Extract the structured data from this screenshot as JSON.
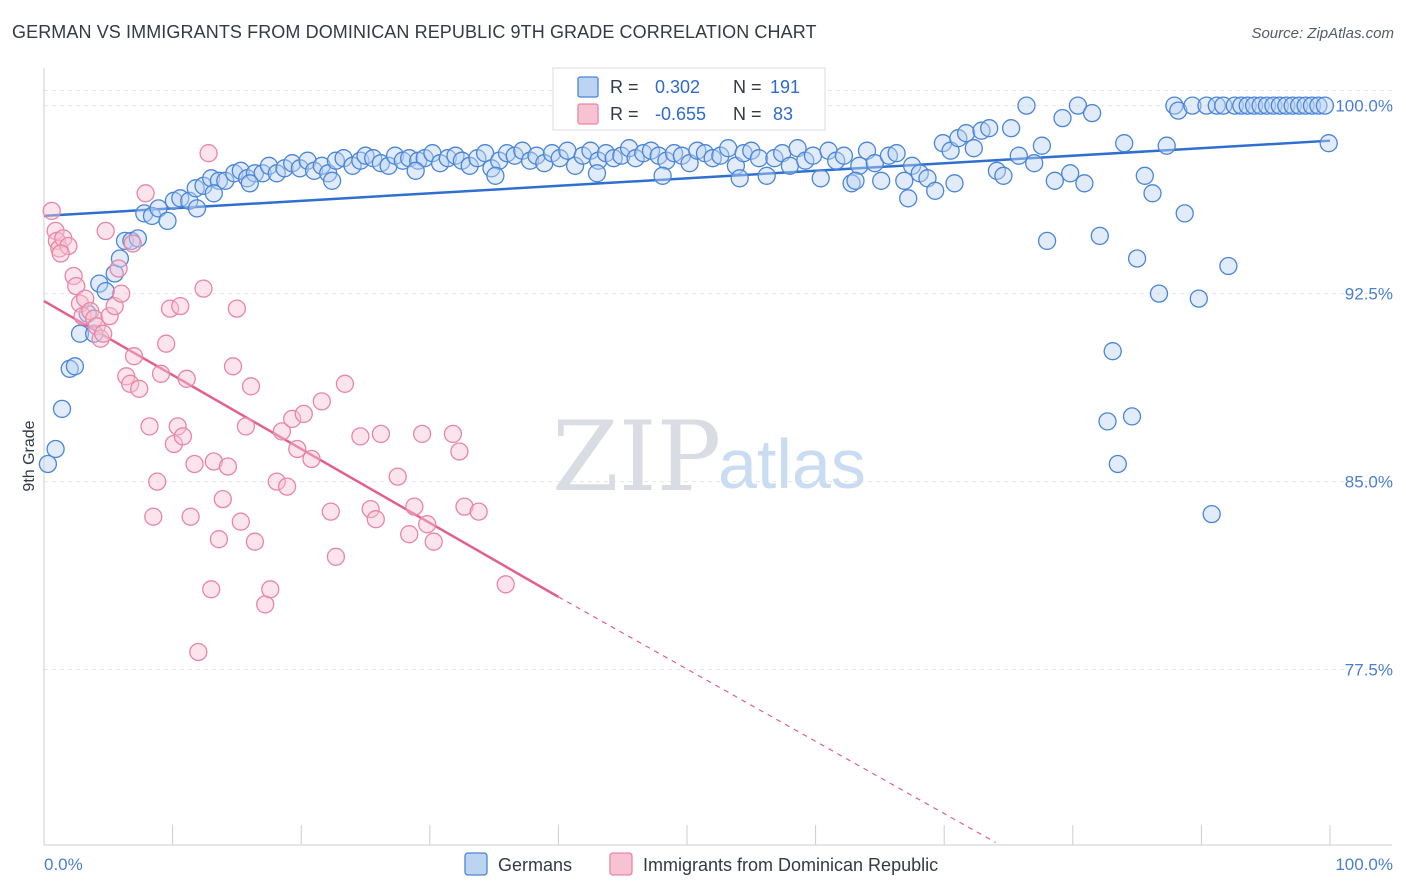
{
  "title": "GERMAN VS IMMIGRANTS FROM DOMINICAN REPUBLIC 9TH GRADE CORRELATION CHART",
  "source": "Source: ZipAtlas.com",
  "watermark": {
    "zip": "ZIP",
    "atlas": "atlas"
  },
  "colors": {
    "blue": "#4a86d8",
    "blue_fill": "#bcd3f2",
    "blue_line": "#2f6fd0",
    "pink": "#e986a6",
    "pink_fill": "#f7c3d3",
    "pink_line": "#e2608d",
    "grid": "#e4e6ea",
    "tick_label": "#4a7fcf"
  },
  "stats": [
    {
      "r_label": "R =",
      "r_value": "0.302",
      "n_label": "N =",
      "n_value": "191",
      "color": "#4a86d8"
    },
    {
      "r_label": "R =",
      "r_value": "-0.655",
      "n_label": "N =",
      "n_value": "83",
      "color": "#e986a6"
    }
  ],
  "chart_data": {
    "type": "scatter",
    "title": "GERMAN VS IMMIGRANTS FROM DOMINICAN REPUBLIC 9TH GRADE CORRELATION CHART",
    "xlabel": "",
    "ylabel": "9th Grade",
    "xlim": [
      0,
      100
    ],
    "ylim": [
      70.5,
      101.5
    ],
    "x_tick_labels": [
      "0.0%",
      "100.0%"
    ],
    "y_ticks": [
      100.0,
      92.5,
      85.0,
      77.5
    ],
    "y_tick_labels": [
      "100.0%",
      "92.5%",
      "85.0%",
      "77.5%"
    ],
    "grid": true,
    "legend_position": "bottom-center",
    "series": [
      {
        "name": "Germans",
        "color": "#4a86d8",
        "trend": {
          "x": [
            0,
            100
          ],
          "y": [
            95.6,
            98.6
          ],
          "solid_to": 100
        },
        "points": [
          [
            0.3,
            85.7
          ],
          [
            0.9,
            86.3
          ],
          [
            1.4,
            87.9
          ],
          [
            2.0,
            89.5
          ],
          [
            2.4,
            89.6
          ],
          [
            2.8,
            90.9
          ],
          [
            3.4,
            91.7
          ],
          [
            3.9,
            90.9
          ],
          [
            4.3,
            92.9
          ],
          [
            4.8,
            92.6
          ],
          [
            5.5,
            93.3
          ],
          [
            5.9,
            93.9
          ],
          [
            6.3,
            94.6
          ],
          [
            6.8,
            94.6
          ],
          [
            7.3,
            94.7
          ],
          [
            7.8,
            95.7
          ],
          [
            8.4,
            95.6
          ],
          [
            8.9,
            95.9
          ],
          [
            9.6,
            95.4
          ],
          [
            10.1,
            96.2
          ],
          [
            10.6,
            96.3
          ],
          [
            11.3,
            96.2
          ],
          [
            11.8,
            96.7
          ],
          [
            12.4,
            96.8
          ],
          [
            13.0,
            97.1
          ],
          [
            13.6,
            97.0
          ],
          [
            14.1,
            97.0
          ],
          [
            14.8,
            97.3
          ],
          [
            15.3,
            97.4
          ],
          [
            15.8,
            97.1
          ],
          [
            16.4,
            97.3
          ],
          [
            17.0,
            97.3
          ],
          [
            17.5,
            97.6
          ],
          [
            18.1,
            97.3
          ],
          [
            18.7,
            97.5
          ],
          [
            19.3,
            97.7
          ],
          [
            19.9,
            97.5
          ],
          [
            20.5,
            97.8
          ],
          [
            21.0,
            97.4
          ],
          [
            21.6,
            97.6
          ],
          [
            22.1,
            97.3
          ],
          [
            22.7,
            97.8
          ],
          [
            23.3,
            97.9
          ],
          [
            24.0,
            97.6
          ],
          [
            24.6,
            97.8
          ],
          [
            25.0,
            98.0
          ],
          [
            25.6,
            97.9
          ],
          [
            26.2,
            97.7
          ],
          [
            26.8,
            97.6
          ],
          [
            27.3,
            98.0
          ],
          [
            27.9,
            97.8
          ],
          [
            28.4,
            97.9
          ],
          [
            29.1,
            97.8
          ],
          [
            29.6,
            97.9
          ],
          [
            30.2,
            98.1
          ],
          [
            30.8,
            97.7
          ],
          [
            31.4,
            97.9
          ],
          [
            32.0,
            98.0
          ],
          [
            32.5,
            97.8
          ],
          [
            33.1,
            97.6
          ],
          [
            33.7,
            97.9
          ],
          [
            34.3,
            98.1
          ],
          [
            34.8,
            97.5
          ],
          [
            35.4,
            97.8
          ],
          [
            36.0,
            98.1
          ],
          [
            36.6,
            98.0
          ],
          [
            37.2,
            98.2
          ],
          [
            37.8,
            97.8
          ],
          [
            38.3,
            98.0
          ],
          [
            38.9,
            97.7
          ],
          [
            39.5,
            98.1
          ],
          [
            40.1,
            97.9
          ],
          [
            40.7,
            98.2
          ],
          [
            41.3,
            97.6
          ],
          [
            41.9,
            98.0
          ],
          [
            42.5,
            98.2
          ],
          [
            43.1,
            97.8
          ],
          [
            43.7,
            98.1
          ],
          [
            44.3,
            97.9
          ],
          [
            44.9,
            98.0
          ],
          [
            45.5,
            98.3
          ],
          [
            46.0,
            97.9
          ],
          [
            46.6,
            98.1
          ],
          [
            47.2,
            98.2
          ],
          [
            47.8,
            98.0
          ],
          [
            48.4,
            97.8
          ],
          [
            49.0,
            98.1
          ],
          [
            49.6,
            98.0
          ],
          [
            50.2,
            97.7
          ],
          [
            50.8,
            98.2
          ],
          [
            51.4,
            98.1
          ],
          [
            52.0,
            97.9
          ],
          [
            52.6,
            98.0
          ],
          [
            53.2,
            98.3
          ],
          [
            53.8,
            97.6
          ],
          [
            54.4,
            98.1
          ],
          [
            55.0,
            98.2
          ],
          [
            55.6,
            97.9
          ],
          [
            56.2,
            97.2
          ],
          [
            56.8,
            97.9
          ],
          [
            57.4,
            98.1
          ],
          [
            58.0,
            97.6
          ],
          [
            58.6,
            98.3
          ],
          [
            59.2,
            97.8
          ],
          [
            59.8,
            98.0
          ],
          [
            60.4,
            97.1
          ],
          [
            61.0,
            98.2
          ],
          [
            61.6,
            97.8
          ],
          [
            62.2,
            98.0
          ],
          [
            62.8,
            96.9
          ],
          [
            63.4,
            97.6
          ],
          [
            64.0,
            98.2
          ],
          [
            64.6,
            97.7
          ],
          [
            65.1,
            97.0
          ],
          [
            65.7,
            98.0
          ],
          [
            66.3,
            98.1
          ],
          [
            66.9,
            97.0
          ],
          [
            67.5,
            97.6
          ],
          [
            68.1,
            97.3
          ],
          [
            68.7,
            97.1
          ],
          [
            69.3,
            96.6
          ],
          [
            69.9,
            98.5
          ],
          [
            70.5,
            98.2
          ],
          [
            71.1,
            98.7
          ],
          [
            71.7,
            98.9
          ],
          [
            72.3,
            98.3
          ],
          [
            72.9,
            99.0
          ],
          [
            73.5,
            99.1
          ],
          [
            74.1,
            97.4
          ],
          [
            74.6,
            97.2
          ],
          [
            75.2,
            99.1
          ],
          [
            75.8,
            98.0
          ],
          [
            76.4,
            100.0
          ],
          [
            77.0,
            97.7
          ],
          [
            77.6,
            98.4
          ],
          [
            78.0,
            94.6
          ],
          [
            78.6,
            97.0
          ],
          [
            79.2,
            99.5
          ],
          [
            79.8,
            97.3
          ],
          [
            80.4,
            100.0
          ],
          [
            80.9,
            96.9
          ],
          [
            81.5,
            99.7
          ],
          [
            82.1,
            94.8
          ],
          [
            82.7,
            87.4
          ],
          [
            83.1,
            90.2
          ],
          [
            83.5,
            85.7
          ],
          [
            84.0,
            98.5
          ],
          [
            84.6,
            87.6
          ],
          [
            85.0,
            93.9
          ],
          [
            85.6,
            97.2
          ],
          [
            86.2,
            96.5
          ],
          [
            86.7,
            92.5
          ],
          [
            87.3,
            98.4
          ],
          [
            87.9,
            100.0
          ],
          [
            88.2,
            99.8
          ],
          [
            88.7,
            95.7
          ],
          [
            89.3,
            100.0
          ],
          [
            89.8,
            92.3
          ],
          [
            90.4,
            100.0
          ],
          [
            90.8,
            83.7
          ],
          [
            91.2,
            100.0
          ],
          [
            91.7,
            100.0
          ],
          [
            92.1,
            93.6
          ],
          [
            92.6,
            100.0
          ],
          [
            93.1,
            100.0
          ],
          [
            93.6,
            100.0
          ],
          [
            94.1,
            100.0
          ],
          [
            94.6,
            100.0
          ],
          [
            95.1,
            100.0
          ],
          [
            95.6,
            100.0
          ],
          [
            96.1,
            100.0
          ],
          [
            96.6,
            100.0
          ],
          [
            97.1,
            100.0
          ],
          [
            97.6,
            100.0
          ],
          [
            98.1,
            100.0
          ],
          [
            98.6,
            100.0
          ],
          [
            99.1,
            100.0
          ],
          [
            99.6,
            100.0
          ],
          [
            99.9,
            98.5
          ],
          [
            11.9,
            95.9
          ],
          [
            13.2,
            96.5
          ],
          [
            16.0,
            96.9
          ],
          [
            22.4,
            97.0
          ],
          [
            28.9,
            97.4
          ],
          [
            35.1,
            97.2
          ],
          [
            43.0,
            97.3
          ],
          [
            48.1,
            97.2
          ],
          [
            54.1,
            97.1
          ],
          [
            63.1,
            97.0
          ],
          [
            67.2,
            96.3
          ],
          [
            70.8,
            96.9
          ]
        ]
      },
      {
        "name": "Immigrants from Dominican Republic",
        "color": "#e986a6",
        "trend": {
          "x": [
            0,
            40,
            74
          ],
          "y": [
            92.2,
            80.4,
            70.6
          ],
          "solid_to": 40
        },
        "points": [
          [
            0.6,
            95.8
          ],
          [
            0.9,
            95.0
          ],
          [
            1.0,
            94.6
          ],
          [
            1.2,
            94.3
          ],
          [
            1.5,
            94.7
          ],
          [
            1.9,
            94.4
          ],
          [
            2.3,
            93.2
          ],
          [
            2.5,
            92.8
          ],
          [
            2.8,
            92.1
          ],
          [
            3.0,
            91.6
          ],
          [
            3.2,
            92.3
          ],
          [
            3.6,
            91.8
          ],
          [
            3.9,
            91.5
          ],
          [
            4.1,
            91.2
          ],
          [
            4.4,
            90.7
          ],
          [
            4.6,
            90.9
          ],
          [
            4.8,
            95.0
          ],
          [
            5.1,
            91.6
          ],
          [
            5.5,
            92.0
          ],
          [
            5.8,
            93.5
          ],
          [
            6.0,
            92.5
          ],
          [
            6.4,
            89.2
          ],
          [
            6.7,
            88.9
          ],
          [
            7.0,
            90.0
          ],
          [
            7.4,
            88.7
          ],
          [
            7.9,
            96.5
          ],
          [
            8.2,
            87.2
          ],
          [
            8.5,
            83.6
          ],
          [
            8.8,
            85.0
          ],
          [
            9.1,
            89.3
          ],
          [
            9.5,
            90.5
          ],
          [
            9.8,
            91.9
          ],
          [
            10.1,
            86.5
          ],
          [
            10.4,
            87.2
          ],
          [
            10.6,
            92.0
          ],
          [
            10.8,
            86.8
          ],
          [
            11.1,
            89.1
          ],
          [
            11.4,
            83.6
          ],
          [
            11.7,
            85.7
          ],
          [
            12.0,
            78.2
          ],
          [
            12.4,
            92.7
          ],
          [
            12.8,
            98.1
          ],
          [
            13.0,
            80.7
          ],
          [
            13.2,
            85.8
          ],
          [
            13.6,
            82.7
          ],
          [
            13.9,
            84.3
          ],
          [
            14.3,
            85.6
          ],
          [
            14.7,
            89.6
          ],
          [
            15.0,
            91.9
          ],
          [
            15.3,
            83.4
          ],
          [
            15.7,
            87.2
          ],
          [
            16.1,
            88.8
          ],
          [
            16.4,
            82.6
          ],
          [
            17.2,
            80.1
          ],
          [
            17.6,
            80.7
          ],
          [
            18.1,
            85.0
          ],
          [
            18.5,
            87.0
          ],
          [
            18.9,
            84.8
          ],
          [
            19.3,
            87.5
          ],
          [
            19.7,
            86.3
          ],
          [
            20.2,
            87.7
          ],
          [
            20.8,
            85.9
          ],
          [
            21.6,
            88.2
          ],
          [
            22.3,
            83.8
          ],
          [
            22.7,
            82.0
          ],
          [
            23.4,
            88.9
          ],
          [
            24.6,
            86.8
          ],
          [
            25.4,
            83.9
          ],
          [
            25.8,
            83.5
          ],
          [
            26.2,
            86.9
          ],
          [
            27.5,
            85.2
          ],
          [
            28.4,
            82.9
          ],
          [
            28.8,
            84.0
          ],
          [
            29.4,
            86.9
          ],
          [
            29.8,
            83.3
          ],
          [
            30.3,
            82.6
          ],
          [
            31.8,
            86.9
          ],
          [
            32.3,
            86.2
          ],
          [
            32.7,
            84.0
          ],
          [
            33.8,
            83.8
          ],
          [
            35.9,
            80.9
          ],
          [
            1.3,
            94.1
          ],
          [
            6.9,
            94.5
          ]
        ]
      }
    ]
  }
}
